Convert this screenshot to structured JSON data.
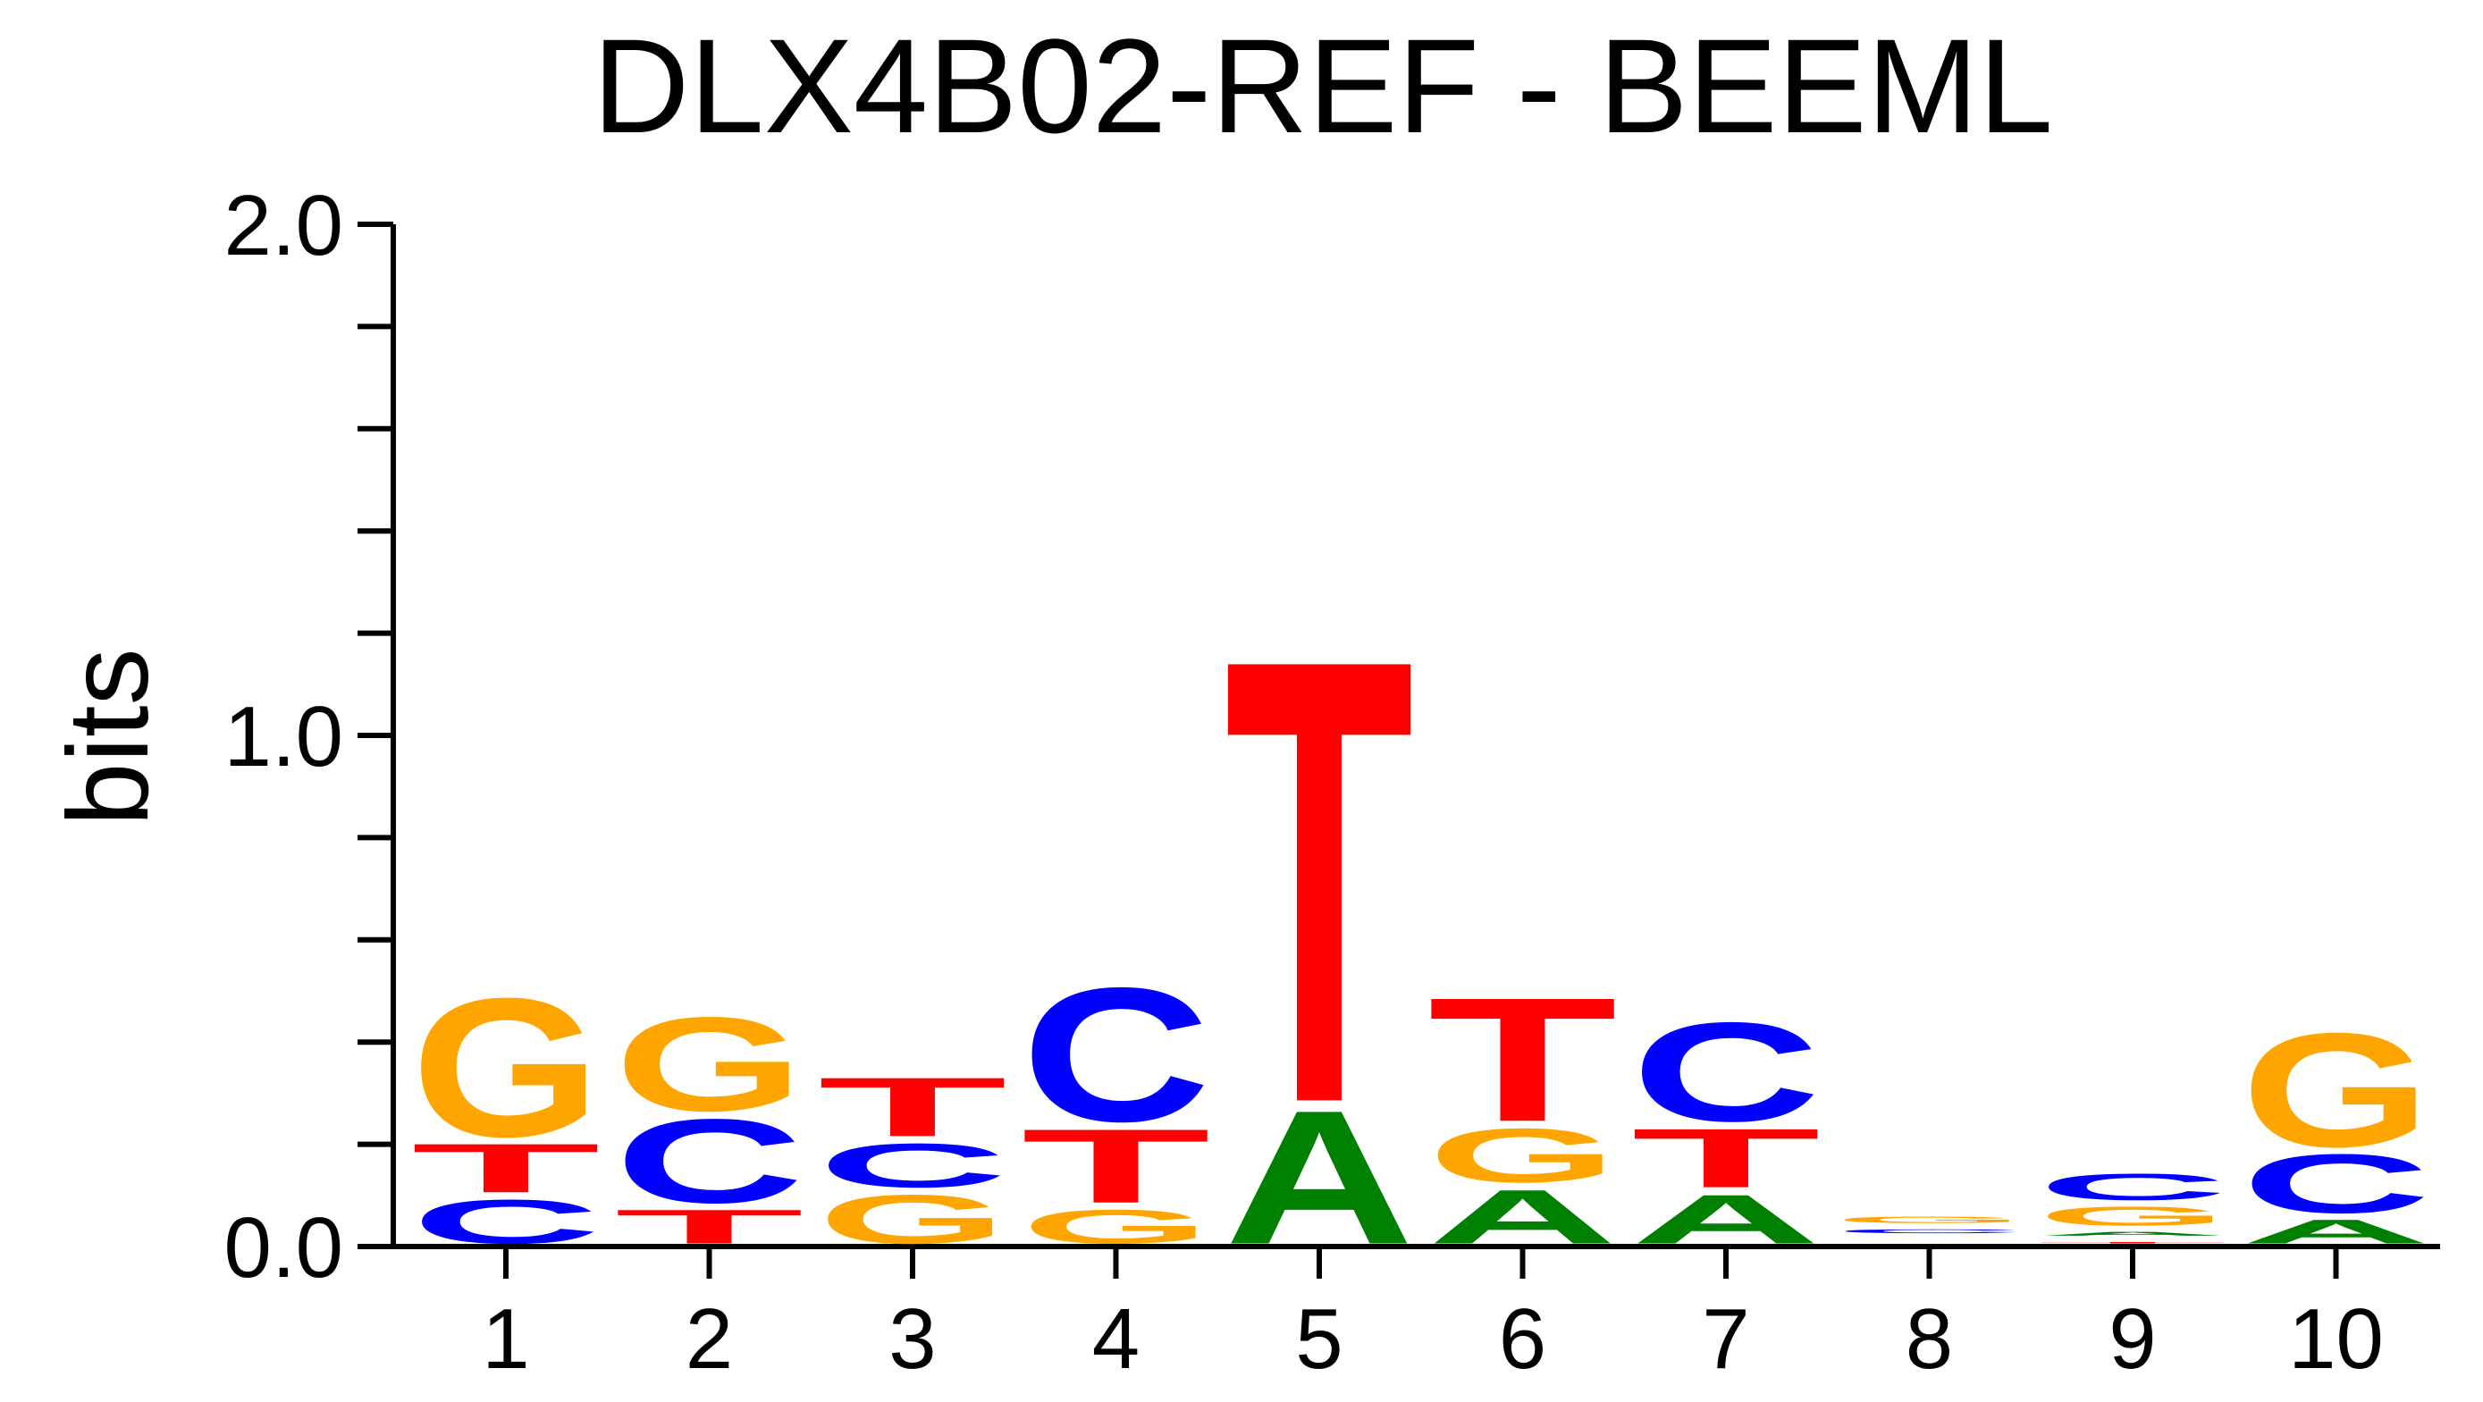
{
  "chart_data": {
    "type": "sequence-logo",
    "title": "DLX4B02-REF - BEEML",
    "xlabel": "",
    "ylabel": "bits",
    "ylim": [
      0,
      2.0
    ],
    "yticks_major": [
      "0.0",
      "1.0",
      "2.0"
    ],
    "colors": {
      "A": "#008000",
      "C": "#0000ff",
      "G": "#ffa500",
      "T": "#ff0000"
    },
    "positions": [
      {
        "label": "1",
        "stack": [
          {
            "base": "C",
            "height": 0.1
          },
          {
            "base": "T",
            "height": 0.11
          },
          {
            "base": "G",
            "height": 0.29
          }
        ]
      },
      {
        "label": "2",
        "stack": [
          {
            "base": "T",
            "height": 0.08
          },
          {
            "base": "C",
            "height": 0.18
          },
          {
            "base": "G",
            "height": 0.2
          }
        ]
      },
      {
        "label": "3",
        "stack": [
          {
            "base": "G",
            "height": 0.11
          },
          {
            "base": "C",
            "height": 0.1
          },
          {
            "base": "T",
            "height": 0.13
          }
        ]
      },
      {
        "label": "4",
        "stack": [
          {
            "base": "G",
            "height": 0.08
          },
          {
            "base": "T",
            "height": 0.16
          },
          {
            "base": "C",
            "height": 0.28
          }
        ]
      },
      {
        "label": "5",
        "stack": [
          {
            "base": "A",
            "height": 0.28
          },
          {
            "base": "T",
            "height": 0.9
          }
        ]
      },
      {
        "label": "6",
        "stack": [
          {
            "base": "A",
            "height": 0.12
          },
          {
            "base": "G",
            "height": 0.12
          },
          {
            "base": "T",
            "height": 0.26
          }
        ]
      },
      {
        "label": "7",
        "stack": [
          {
            "base": "A",
            "height": 0.11
          },
          {
            "base": "T",
            "height": 0.13
          },
          {
            "base": "C",
            "height": 0.21
          }
        ]
      },
      {
        "label": "8",
        "stack": [
          {
            "base": "T",
            "height": 0.01
          },
          {
            "base": "A",
            "height": 0.01
          },
          {
            "base": "C",
            "height": 0.02
          },
          {
            "base": "G",
            "height": 0.025
          }
        ]
      },
      {
        "label": "9",
        "stack": [
          {
            "base": "T",
            "height": 0.015
          },
          {
            "base": "A",
            "height": 0.02
          },
          {
            "base": "G",
            "height": 0.05
          },
          {
            "base": "C",
            "height": 0.065
          }
        ]
      },
      {
        "label": "10",
        "stack": [
          {
            "base": "A",
            "height": 0.06
          },
          {
            "base": "C",
            "height": 0.13
          },
          {
            "base": "G",
            "height": 0.24
          }
        ]
      }
    ]
  }
}
